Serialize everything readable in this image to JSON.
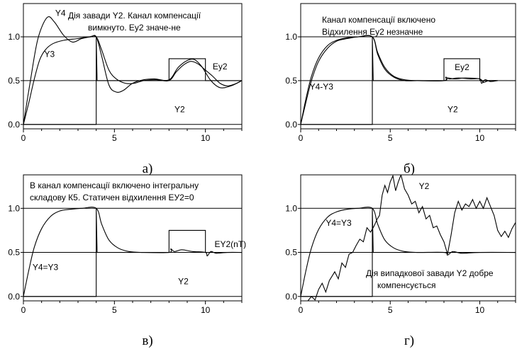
{
  "chart_data": [
    {
      "type": "line",
      "caption": "а)",
      "xlim": [
        0,
        12
      ],
      "ylim": [
        -0.05,
        1.38
      ],
      "x_ticks": [
        "0",
        "5",
        "10"
      ],
      "y_ticks": [
        "0.0",
        "0.5",
        "1.0"
      ],
      "grid_y": [
        0,
        0.5,
        1.0
      ],
      "annotation": [
        "Дія завади Y2. Канал компенсації",
        "вимкнуто. Ey2 значе-не"
      ],
      "labels": [
        {
          "text": "Y4",
          "x": 1.75,
          "y": 1.24
        },
        {
          "text": "Y3",
          "x": 1.15,
          "y": 0.77
        },
        {
          "text": "Ey2",
          "x": 10.4,
          "y": 0.63
        },
        {
          "text": "Y2",
          "x": 8.3,
          "y": 0.14
        }
      ],
      "series": [
        {
          "curve": "step",
          "points": [
            [
              0,
              0
            ],
            [
              4,
              0
            ],
            [
              4,
              1.0
            ],
            [
              4.05,
              0.5
            ],
            [
              8,
              0.5
            ],
            [
              8,
              0.75
            ],
            [
              10,
              0.75
            ],
            [
              10,
              0.5
            ],
            [
              12,
              0.5
            ]
          ]
        },
        {
          "curve": "smooth",
          "points": [
            [
              0,
              0
            ],
            [
              0.3,
              0.25
            ],
            [
              0.6,
              0.52
            ],
            [
              0.9,
              0.74
            ],
            [
              1.2,
              0.85
            ],
            [
              1.6,
              0.92
            ],
            [
              2.2,
              0.96
            ],
            [
              3.0,
              0.98
            ],
            [
              3.6,
              1.0
            ],
            [
              4.0,
              1.0
            ],
            [
              4.3,
              0.85
            ],
            [
              4.7,
              0.62
            ],
            [
              5.1,
              0.52
            ],
            [
              5.6,
              0.47
            ],
            [
              6.1,
              0.47
            ],
            [
              6.6,
              0.5
            ],
            [
              7.3,
              0.51
            ],
            [
              8.0,
              0.5
            ],
            [
              8.4,
              0.6
            ],
            [
              8.8,
              0.68
            ],
            [
              9.2,
              0.72
            ],
            [
              9.6,
              0.69
            ],
            [
              10.0,
              0.62
            ],
            [
              10.4,
              0.55
            ],
            [
              10.8,
              0.47
            ],
            [
              11.2,
              0.44
            ],
            [
              11.6,
              0.46
            ],
            [
              12.0,
              0.5
            ]
          ]
        },
        {
          "curve": "smooth",
          "points": [
            [
              0,
              0
            ],
            [
              0.4,
              0.52
            ],
            [
              0.8,
              0.98
            ],
            [
              1.3,
              1.22
            ],
            [
              1.7,
              1.17
            ],
            [
              2.2,
              1.02
            ],
            [
              2.7,
              0.94
            ],
            [
              3.2,
              0.98
            ],
            [
              3.7,
              1.0
            ],
            [
              4.0,
              1.0
            ],
            [
              4.3,
              0.78
            ],
            [
              4.7,
              0.45
            ],
            [
              5.1,
              0.37
            ],
            [
              5.5,
              0.39
            ],
            [
              6.0,
              0.47
            ],
            [
              6.6,
              0.51
            ],
            [
              7.2,
              0.52
            ],
            [
              8.0,
              0.51
            ],
            [
              8.5,
              0.65
            ],
            [
              9.0,
              0.73
            ],
            [
              9.4,
              0.74
            ],
            [
              9.8,
              0.66
            ],
            [
              10.3,
              0.5
            ],
            [
              10.8,
              0.42
            ],
            [
              11.4,
              0.44
            ],
            [
              12.0,
              0.5
            ]
          ]
        }
      ]
    },
    {
      "type": "line",
      "caption": "б)",
      "xlim": [
        0,
        12
      ],
      "ylim": [
        -0.05,
        1.38
      ],
      "x_ticks": [
        "0",
        "5",
        "10"
      ],
      "y_ticks": [
        "0.0",
        "0.5",
        "1.0"
      ],
      "grid_y": [
        0,
        0.5,
        1.0
      ],
      "annotation": [
        "Канал компенсації включено",
        "Відхилення Ey2 незначне"
      ],
      "labels": [
        {
          "text": "Y4-Y3",
          "x": 0.5,
          "y": 0.4
        },
        {
          "text": "Ey2",
          "x": 8.6,
          "y": 0.62
        },
        {
          "text": "Y2",
          "x": 8.2,
          "y": 0.14
        }
      ],
      "series": [
        {
          "curve": "step",
          "points": [
            [
              0,
              0
            ],
            [
              4,
              0
            ],
            [
              4,
              1.0
            ],
            [
              4.05,
              0.5
            ],
            [
              8,
              0.5
            ],
            [
              8,
              0.75
            ],
            [
              10,
              0.75
            ],
            [
              10,
              0.5
            ],
            [
              11,
              0.5
            ]
          ]
        },
        {
          "curve": "smooth",
          "points": [
            [
              0,
              0
            ],
            [
              0.3,
              0.3
            ],
            [
              0.6,
              0.55
            ],
            [
              1.0,
              0.76
            ],
            [
              1.5,
              0.9
            ],
            [
              2.0,
              0.96
            ],
            [
              2.6,
              0.99
            ],
            [
              3.2,
              1.0
            ],
            [
              4.0,
              1.0
            ],
            [
              4.3,
              0.82
            ],
            [
              4.7,
              0.65
            ],
            [
              5.2,
              0.55
            ],
            [
              5.8,
              0.51
            ],
            [
              6.5,
              0.5
            ],
            [
              8.0,
              0.5
            ],
            [
              8.1,
              0.54
            ],
            [
              8.3,
              0.52
            ],
            [
              8.8,
              0.53
            ],
            [
              9.5,
              0.52
            ],
            [
              10.0,
              0.52
            ],
            [
              10.1,
              0.47
            ],
            [
              10.3,
              0.51
            ],
            [
              10.6,
              0.49
            ],
            [
              11.0,
              0.5
            ]
          ]
        },
        {
          "curve": "smooth",
          "points": [
            [
              0,
              0
            ],
            [
              0.3,
              0.26
            ],
            [
              0.6,
              0.5
            ],
            [
              1.0,
              0.72
            ],
            [
              1.5,
              0.87
            ],
            [
              2.0,
              0.95
            ],
            [
              2.6,
              0.98
            ],
            [
              3.2,
              1.0
            ],
            [
              4.0,
              1.0
            ],
            [
              4.3,
              0.8
            ],
            [
              4.7,
              0.63
            ],
            [
              5.2,
              0.54
            ],
            [
              5.8,
              0.5
            ],
            [
              6.5,
              0.5
            ],
            [
              8.0,
              0.5
            ],
            [
              8.2,
              0.53
            ],
            [
              8.6,
              0.52
            ],
            [
              9.2,
              0.53
            ],
            [
              10.0,
              0.52
            ],
            [
              10.2,
              0.48
            ],
            [
              10.5,
              0.5
            ],
            [
              11.0,
              0.5
            ]
          ]
        }
      ]
    },
    {
      "type": "line",
      "caption": "в)",
      "xlim": [
        0,
        12
      ],
      "ylim": [
        -0.05,
        1.38
      ],
      "x_ticks": [
        "0",
        "5",
        "10"
      ],
      "y_ticks": [
        "0.0",
        "0.5",
        "1.0"
      ],
      "grid_y": [
        0,
        0.5,
        1.0
      ],
      "annotation": [
        "В канал компенсації включено інтегральну",
        "складову К5. Статичен відхилення ЕУ2=0"
      ],
      "labels": [
        {
          "text": "Y4=Y3",
          "x": 0.5,
          "y": 0.3
        },
        {
          "text": "EY2(nT)",
          "x": 10.5,
          "y": 0.56
        },
        {
          "text": "Y2",
          "x": 8.5,
          "y": 0.14
        }
      ],
      "series": [
        {
          "curve": "step",
          "points": [
            [
              0,
              0
            ],
            [
              4,
              0
            ],
            [
              4,
              1.0
            ],
            [
              4.05,
              0.5
            ],
            [
              8,
              0.5
            ],
            [
              8,
              0.75
            ],
            [
              10,
              0.75
            ],
            [
              10,
              0.5
            ],
            [
              12,
              0.5
            ]
          ]
        },
        {
          "curve": "smooth",
          "points": [
            [
              0,
              0
            ],
            [
              0.3,
              0.3
            ],
            [
              0.6,
              0.56
            ],
            [
              1.0,
              0.77
            ],
            [
              1.5,
              0.91
            ],
            [
              2.0,
              0.97
            ],
            [
              2.6,
              0.99
            ],
            [
              3.2,
              1.0
            ],
            [
              4.0,
              1.0
            ],
            [
              4.3,
              0.82
            ],
            [
              4.7,
              0.64
            ],
            [
              5.2,
              0.55
            ],
            [
              5.8,
              0.51
            ],
            [
              6.5,
              0.5
            ],
            [
              8.0,
              0.5
            ],
            [
              8.1,
              0.54
            ],
            [
              8.3,
              0.51
            ],
            [
              8.7,
              0.53
            ],
            [
              9.3,
              0.51
            ],
            [
              10.0,
              0.5
            ],
            [
              10.1,
              0.46
            ],
            [
              10.3,
              0.51
            ],
            [
              10.6,
              0.49
            ],
            [
              11.2,
              0.5
            ],
            [
              12.0,
              0.5
            ]
          ]
        }
      ]
    },
    {
      "type": "line",
      "caption": "г)",
      "xlim": [
        0,
        12
      ],
      "ylim": [
        -0.05,
        1.38
      ],
      "x_ticks": [
        "0",
        "5",
        "10"
      ],
      "y_ticks": [
        "0.0",
        "0.5",
        "1.0"
      ],
      "grid_y": [
        0,
        0.5,
        1.0
      ],
      "annotation": [
        "Дія випадкової завади Y2 добре",
        "компенсується"
      ],
      "labels": [
        {
          "text": "Y2",
          "x": 6.6,
          "y": 1.22
        },
        {
          "text": "Y4=Y3",
          "x": 1.4,
          "y": 0.8
        }
      ],
      "series": [
        {
          "curve": "step",
          "points": [
            [
              0,
              0
            ],
            [
              4,
              0
            ],
            [
              4,
              1.0
            ],
            [
              4.05,
              0.5
            ],
            [
              12,
              0.5
            ]
          ]
        },
        {
          "curve": "smooth",
          "points": [
            [
              0,
              0
            ],
            [
              0.3,
              0.3
            ],
            [
              0.6,
              0.55
            ],
            [
              1.0,
              0.76
            ],
            [
              1.5,
              0.9
            ],
            [
              2.0,
              0.96
            ],
            [
              2.6,
              0.99
            ],
            [
              3.2,
              1.0
            ],
            [
              4.0,
              1.0
            ],
            [
              4.3,
              0.82
            ],
            [
              4.7,
              0.64
            ],
            [
              5.2,
              0.55
            ],
            [
              5.8,
              0.51
            ],
            [
              6.5,
              0.5
            ],
            [
              8.0,
              0.5
            ],
            [
              8.2,
              0.47
            ],
            [
              8.5,
              0.51
            ],
            [
              9.0,
              0.49
            ],
            [
              10.0,
              0.5
            ],
            [
              12.0,
              0.5
            ]
          ]
        },
        {
          "curve": "linear",
          "points": [
            [
              0.4,
              -0.05
            ],
            [
              0.6,
              0.0
            ],
            [
              0.8,
              -0.04
            ],
            [
              1.0,
              0.08
            ],
            [
              1.2,
              0.15
            ],
            [
              1.4,
              0.05
            ],
            [
              1.6,
              0.18
            ],
            [
              1.9,
              0.28
            ],
            [
              2.1,
              0.2
            ],
            [
              2.3,
              0.38
            ],
            [
              2.5,
              0.33
            ],
            [
              2.7,
              0.48
            ],
            [
              2.9,
              0.5
            ],
            [
              3.1,
              0.58
            ],
            [
              3.3,
              0.65
            ],
            [
              3.5,
              0.62
            ],
            [
              3.7,
              0.78
            ],
            [
              3.9,
              0.73
            ],
            [
              4.1,
              0.8
            ],
            [
              4.25,
              0.87
            ],
            [
              4.4,
              0.92
            ],
            [
              4.55,
              1.15
            ],
            [
              4.7,
              1.26
            ],
            [
              4.85,
              1.18
            ],
            [
              5.0,
              1.3
            ],
            [
              5.15,
              1.37
            ],
            [
              5.3,
              1.2
            ],
            [
              5.45,
              1.3
            ],
            [
              5.6,
              1.38
            ],
            [
              5.8,
              1.22
            ],
            [
              6.0,
              1.15
            ],
            [
              6.2,
              1.05
            ],
            [
              6.4,
              1.08
            ],
            [
              6.6,
              0.95
            ],
            [
              6.8,
              1.02
            ],
            [
              7.0,
              0.88
            ],
            [
              7.2,
              0.92
            ],
            [
              7.4,
              0.78
            ],
            [
              7.6,
              0.8
            ],
            [
              7.8,
              0.7
            ],
            [
              8.0,
              0.62
            ],
            [
              8.2,
              0.48
            ],
            [
              8.4,
              0.7
            ],
            [
              8.6,
              0.95
            ],
            [
              8.8,
              1.08
            ],
            [
              9.0,
              0.98
            ],
            [
              9.2,
              1.05
            ],
            [
              9.4,
              1.02
            ],
            [
              9.6,
              1.1
            ],
            [
              9.8,
              1.0
            ],
            [
              10.0,
              1.08
            ],
            [
              10.2,
              1.0
            ],
            [
              10.4,
              1.12
            ],
            [
              10.6,
              1.02
            ],
            [
              10.8,
              0.92
            ],
            [
              11.0,
              0.75
            ],
            [
              11.2,
              0.68
            ],
            [
              11.4,
              0.74
            ],
            [
              11.6,
              0.67
            ],
            [
              11.8,
              0.77
            ],
            [
              12.0,
              0.84
            ]
          ]
        }
      ]
    }
  ]
}
